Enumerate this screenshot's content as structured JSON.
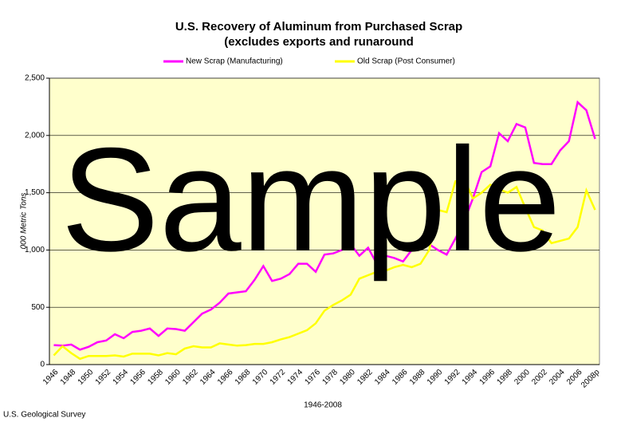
{
  "chart_data": {
    "type": "line",
    "title": "U.S. Recovery of Aluminum from Purchased Scrap",
    "subtitle": "(excludes exports and runaround",
    "y_label": "000 Metric Tons",
    "x_label": "1946-2008",
    "source": "U.S. Geological Survey",
    "watermark": "Sample",
    "categories": [
      "1946",
      null,
      "1948",
      null,
      "1950",
      null,
      "1952",
      null,
      "1954",
      null,
      "1956",
      null,
      "1958",
      null,
      "1960",
      null,
      "1962",
      null,
      "1964",
      null,
      "1966",
      null,
      "1968",
      null,
      "1970",
      null,
      "1972",
      null,
      "1974",
      null,
      "1976",
      null,
      "1978",
      null,
      "1980",
      null,
      "1982",
      null,
      "1984",
      null,
      "1986",
      null,
      "1988",
      null,
      "1990",
      null,
      "1992",
      null,
      "1994",
      null,
      "1996",
      null,
      "1998",
      null,
      "2000",
      null,
      "2002",
      null,
      "2004",
      null,
      "2006",
      null,
      "2008p"
    ],
    "series": [
      {
        "name": "New Scrap (Manufacturing)",
        "color": "#ff00ff",
        "values": [
          170,
          165,
          175,
          130,
          155,
          195,
          210,
          265,
          230,
          285,
          295,
          315,
          250,
          315,
          310,
          295,
          370,
          445,
          480,
          540,
          620,
          630,
          640,
          740,
          860,
          730,
          750,
          790,
          880,
          880,
          810,
          960,
          970,
          1000,
          1050,
          950,
          1020,
          880,
          950,
          930,
          900,
          1000,
          1100,
          1050,
          1000,
          960,
          1100,
          1250,
          1450,
          1680,
          1730,
          2020,
          1950,
          2100,
          2070,
          1760,
          1750,
          1750,
          1870,
          1950,
          2290,
          2220,
          1970
        ]
      },
      {
        "name": "Old Scrap (Post Consumer)",
        "color": "#ffff00",
        "values": [
          80,
          160,
          100,
          50,
          75,
          75,
          75,
          80,
          70,
          95,
          95,
          95,
          80,
          100,
          90,
          140,
          160,
          150,
          150,
          185,
          175,
          165,
          170,
          180,
          180,
          195,
          220,
          240,
          270,
          300,
          360,
          470,
          520,
          560,
          610,
          750,
          780,
          810,
          820,
          850,
          870,
          850,
          880,
          1000,
          1350,
          1330,
          1600,
          1620,
          1450,
          1500,
          1570,
          1530,
          1500,
          1550,
          1370,
          1200,
          1170,
          1060,
          1080,
          1100,
          1200,
          1520,
          1350
        ]
      }
    ],
    "ylim": [
      0,
      2500
    ],
    "yticks": [
      0,
      500,
      {
        "value": 1000,
        "label": "1,000"
      },
      {
        "value": 1500,
        "label": "1,500"
      },
      {
        "value": 2000,
        "label": "2,000"
      },
      {
        "value": 2500,
        "label": "2,500"
      }
    ],
    "grid": true,
    "plot_background": "#ffffcc"
  }
}
